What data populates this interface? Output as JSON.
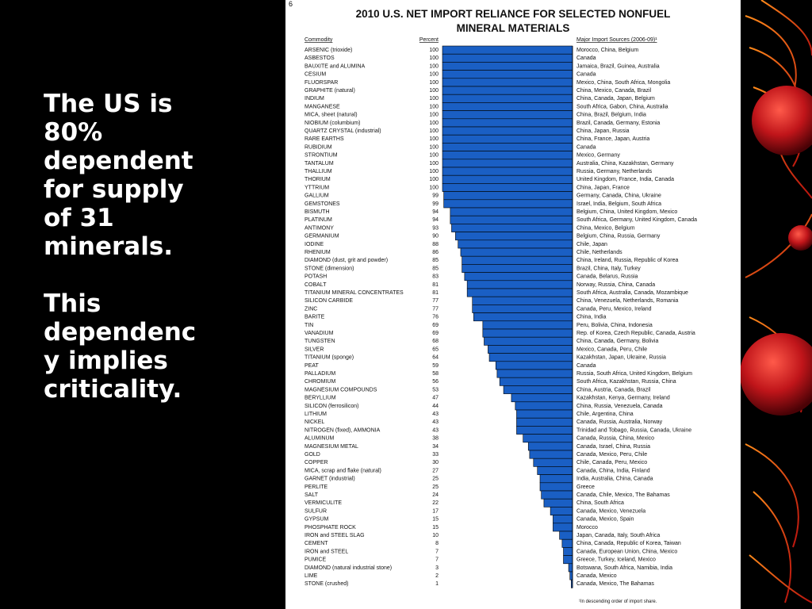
{
  "slide": {
    "paragraphs": [
      "The US is\n80%\ndependent\nfor supply\nof 31\nminerals.",
      "This\ndependenc\ny implies\ncriticality."
    ]
  },
  "page_number": "6",
  "chart_data": {
    "type": "bar",
    "orientation": "horizontal",
    "title_lines": [
      "2010 U.S. NET IMPORT RELIANCE FOR SELECTED NONFUEL",
      "MINERAL MATERIALS"
    ],
    "headers": {
      "commodity": "Commodity",
      "percent": "Percent",
      "sources": "Major Import Sources (2006-09)¹"
    },
    "footnote": "¹In descending order of import share.",
    "bar_color": "#1a5fc4",
    "xlim": [
      0,
      100
    ],
    "rows": [
      {
        "commodity": "ARSENIC (trioxide)",
        "percent": 100,
        "sources": "Morocco, China, Belgium"
      },
      {
        "commodity": "ASBESTOS",
        "percent": 100,
        "sources": "Canada"
      },
      {
        "commodity": "BAUXITE and ALUMINA",
        "percent": 100,
        "sources": "Jamaica, Brazil, Guinea, Australia"
      },
      {
        "commodity": "CESIUM",
        "percent": 100,
        "sources": "Canada"
      },
      {
        "commodity": "FLUORSPAR",
        "percent": 100,
        "sources": "Mexico, China, South Africa, Mongolia"
      },
      {
        "commodity": "GRAPHITE (natural)",
        "percent": 100,
        "sources": "China, Mexico, Canada, Brazil"
      },
      {
        "commodity": "INDIUM",
        "percent": 100,
        "sources": "China, Canada, Japan, Belgium"
      },
      {
        "commodity": "MANGANESE",
        "percent": 100,
        "sources": "South Africa, Gabon, China, Australia"
      },
      {
        "commodity": "MICA, sheet (natural)",
        "percent": 100,
        "sources": "China, Brazil, Belgium, India"
      },
      {
        "commodity": "NIOBIUM (columbium)",
        "percent": 100,
        "sources": "Brazil, Canada, Germany, Estonia"
      },
      {
        "commodity": "QUARTZ CRYSTAL (industrial)",
        "percent": 100,
        "sources": "China, Japan, Russia"
      },
      {
        "commodity": "RARE EARTHS",
        "percent": 100,
        "sources": "China, France, Japan, Austria"
      },
      {
        "commodity": "RUBIDIUM",
        "percent": 100,
        "sources": "Canada"
      },
      {
        "commodity": "STRONTIUM",
        "percent": 100,
        "sources": "Mexico, Germany"
      },
      {
        "commodity": "TANTALUM",
        "percent": 100,
        "sources": "Australia, China, Kazakhstan, Germany"
      },
      {
        "commodity": "THALLIUM",
        "percent": 100,
        "sources": "Russia, Germany, Netherlands"
      },
      {
        "commodity": "THORIUM",
        "percent": 100,
        "sources": "United Kingdom, France, India, Canada"
      },
      {
        "commodity": "YTTRIUM",
        "percent": 100,
        "sources": "China, Japan, France"
      },
      {
        "commodity": "GALLIUM",
        "percent": 99,
        "sources": "Germany, Canada, China, Ukraine"
      },
      {
        "commodity": "GEMSTONES",
        "percent": 99,
        "sources": "Israel, India, Belgium, South Africa"
      },
      {
        "commodity": "BISMUTH",
        "percent": 94,
        "sources": "Belgium, China, United Kingdom, Mexico"
      },
      {
        "commodity": "PLATINUM",
        "percent": 94,
        "sources": "South Africa, Germany, United Kingdom, Canada"
      },
      {
        "commodity": "ANTIMONY",
        "percent": 93,
        "sources": "China, Mexico, Belgium"
      },
      {
        "commodity": "GERMANIUM",
        "percent": 90,
        "sources": "Belgium, China, Russia, Germany"
      },
      {
        "commodity": "IODINE",
        "percent": 88,
        "sources": "Chile, Japan"
      },
      {
        "commodity": "RHENIUM",
        "percent": 86,
        "sources": "Chile, Netherlands"
      },
      {
        "commodity": "DIAMOND (dust, grit and powder)",
        "percent": 85,
        "sources": "China, Ireland, Russia, Republic of Korea"
      },
      {
        "commodity": "STONE (dimension)",
        "percent": 85,
        "sources": "Brazil, China, Italy, Turkey"
      },
      {
        "commodity": "POTASH",
        "percent": 83,
        "sources": "Canada, Belarus, Russia"
      },
      {
        "commodity": "COBALT",
        "percent": 81,
        "sources": "Norway, Russia, China, Canada"
      },
      {
        "commodity": "TITANIUM MINERAL CONCENTRATES",
        "percent": 81,
        "sources": "South Africa, Australia, Canada, Mozambique"
      },
      {
        "commodity": "SILICON CARBIDE",
        "percent": 77,
        "sources": "China, Venezuela, Netherlands, Romania"
      },
      {
        "commodity": "ZINC",
        "percent": 77,
        "sources": "Canada, Peru, Mexico, Ireland"
      },
      {
        "commodity": "BARITE",
        "percent": 76,
        "sources": "China, India"
      },
      {
        "commodity": "TIN",
        "percent": 69,
        "sources": "Peru, Bolivia, China, Indonesia"
      },
      {
        "commodity": "VANADIUM",
        "percent": 69,
        "sources": "Rep. of Korea, Czech Republic, Canada, Austria"
      },
      {
        "commodity": "TUNGSTEN",
        "percent": 68,
        "sources": "China, Canada, Germany, Bolivia"
      },
      {
        "commodity": "SILVER",
        "percent": 65,
        "sources": "Mexico, Canada, Peru, Chile"
      },
      {
        "commodity": "TITANIUM (sponge)",
        "percent": 64,
        "sources": "Kazakhstan, Japan, Ukraine, Russia"
      },
      {
        "commodity": "PEAT",
        "percent": 59,
        "sources": "Canada"
      },
      {
        "commodity": "PALLADIUM",
        "percent": 58,
        "sources": "Russia, South Africa, United Kingdom, Belgium"
      },
      {
        "commodity": "CHROMIUM",
        "percent": 56,
        "sources": "South Africa, Kazakhstan, Russia, China"
      },
      {
        "commodity": "MAGNESIUM COMPOUNDS",
        "percent": 53,
        "sources": "China, Austria, Canada, Brazil"
      },
      {
        "commodity": "BERYLLIUM",
        "percent": 47,
        "sources": "Kazakhstan, Kenya, Germany, Ireland"
      },
      {
        "commodity": "SILICON (ferrosilicon)",
        "percent": 44,
        "sources": "China, Russia, Venezuela, Canada"
      },
      {
        "commodity": "LITHIUM",
        "percent": 43,
        "sources": "Chile, Argentina, China"
      },
      {
        "commodity": "NICKEL",
        "percent": 43,
        "sources": "Canada, Russia, Australia, Norway"
      },
      {
        "commodity": "NITROGEN (fixed), AMMONIA",
        "percent": 43,
        "sources": "Trinidad and Tobago, Russia, Canada, Ukraine"
      },
      {
        "commodity": "ALUMINUM",
        "percent": 38,
        "sources": "Canada, Russia, China, Mexico"
      },
      {
        "commodity": "MAGNESIUM METAL",
        "percent": 34,
        "sources": "Canada, Israel, China, Russia"
      },
      {
        "commodity": "GOLD",
        "percent": 33,
        "sources": "Canada, Mexico, Peru, Chile"
      },
      {
        "commodity": "COPPER",
        "percent": 30,
        "sources": "Chile, Canada, Peru, Mexico"
      },
      {
        "commodity": "MICA, scrap and flake (natural)",
        "percent": 27,
        "sources": "Canada, China, India, Finland"
      },
      {
        "commodity": "GARNET (industrial)",
        "percent": 25,
        "sources": "India, Australia, China, Canada"
      },
      {
        "commodity": "PERLITE",
        "percent": 25,
        "sources": "Greece"
      },
      {
        "commodity": "SALT",
        "percent": 24,
        "sources": "Canada, Chile, Mexico, The Bahamas"
      },
      {
        "commodity": "VERMICULITE",
        "percent": 22,
        "sources": "China, South Africa"
      },
      {
        "commodity": "SULFUR",
        "percent": 17,
        "sources": "Canada, Mexico, Venezuela"
      },
      {
        "commodity": "GYPSUM",
        "percent": 15,
        "sources": "Canada, Mexico, Spain"
      },
      {
        "commodity": "PHOSPHATE ROCK",
        "percent": 15,
        "sources": "Morocco"
      },
      {
        "commodity": "IRON and STEEL SLAG",
        "percent": 10,
        "sources": "Japan, Canada, Italy, South Africa"
      },
      {
        "commodity": "CEMENT",
        "percent": 8,
        "sources": "China, Canada, Republic of Korea, Taiwan"
      },
      {
        "commodity": "IRON and STEEL",
        "percent": 7,
        "sources": "Canada, European Union, China, Mexico"
      },
      {
        "commodity": "PUMICE",
        "percent": 7,
        "sources": "Greece, Turkey, Iceland, Mexico"
      },
      {
        "commodity": "DIAMOND (natural industrial stone)",
        "percent": 3,
        "sources": "Botswana, South Africa, Namibia, India"
      },
      {
        "commodity": "LIME",
        "percent": 2,
        "sources": "Canada, Mexico"
      },
      {
        "commodity": "STONE (crushed)",
        "percent": 1,
        "sources": "Canada, Mexico, The Bahamas"
      }
    ]
  }
}
